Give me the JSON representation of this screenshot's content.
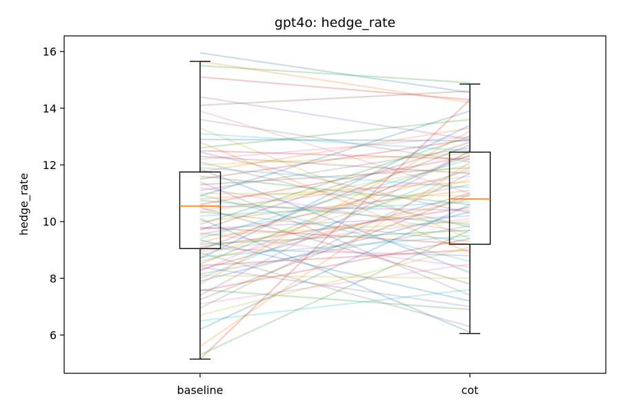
{
  "chart_data": {
    "type": "box",
    "title": "gpt4o: hedge_rate",
    "ylabel": "hedge_rate",
    "xlabel": "",
    "categories": [
      "baseline",
      "cot"
    ],
    "ylim": [
      4.65,
      16.55
    ],
    "yticks": [
      6,
      8,
      10,
      12,
      14,
      16
    ],
    "grid": false,
    "legend": "none",
    "box_stats": [
      {
        "category": "baseline",
        "whisker_low": 5.15,
        "q1": 9.05,
        "median": 10.55,
        "q3": 11.75,
        "whisker_high": 15.65
      },
      {
        "category": "cot",
        "whisker_low": 6.05,
        "q1": 9.2,
        "median": 10.8,
        "q3": 12.45,
        "whisker_high": 14.85
      }
    ],
    "paired_lines": [
      [
        15.95,
        14.55
      ],
      [
        15.65,
        14.2
      ],
      [
        15.5,
        14.9
      ],
      [
        15.1,
        14.3
      ],
      [
        14.4,
        12.9
      ],
      [
        14.1,
        14.6
      ],
      [
        13.9,
        11.0
      ],
      [
        13.6,
        12.1
      ],
      [
        13.3,
        9.4
      ],
      [
        13.1,
        12.5
      ],
      [
        12.9,
        12.85
      ],
      [
        12.8,
        8.9
      ],
      [
        12.6,
        13.6
      ],
      [
        12.5,
        12.2
      ],
      [
        12.45,
        10.3
      ],
      [
        12.3,
        11.7
      ],
      [
        12.2,
        13.0
      ],
      [
        12.1,
        9.8
      ],
      [
        12.0,
        12.4
      ],
      [
        11.9,
        11.2
      ],
      [
        11.85,
        8.2
      ],
      [
        11.75,
        13.3
      ],
      [
        11.6,
        10.6
      ],
      [
        11.5,
        12.9
      ],
      [
        11.4,
        7.4
      ],
      [
        11.3,
        11.9
      ],
      [
        11.2,
        9.6
      ],
      [
        11.1,
        12.6
      ],
      [
        11.0,
        10.9
      ],
      [
        10.95,
        8.6
      ],
      [
        10.9,
        13.9
      ],
      [
        10.8,
        11.4
      ],
      [
        10.75,
        9.9
      ],
      [
        10.6,
        12.3
      ],
      [
        10.55,
        10.4
      ],
      [
        10.5,
        7.8
      ],
      [
        10.4,
        11.6
      ],
      [
        10.35,
        9.3
      ],
      [
        10.3,
        12.0
      ],
      [
        10.2,
        10.7
      ],
      [
        10.1,
        6.1
      ],
      [
        10.0,
        11.1
      ],
      [
        9.9,
        13.0
      ],
      [
        9.8,
        9.2
      ],
      [
        9.75,
        10.2
      ],
      [
        9.7,
        12.8
      ],
      [
        9.6,
        8.4
      ],
      [
        9.55,
        11.3
      ],
      [
        9.5,
        10.0
      ],
      [
        9.4,
        12.2
      ],
      [
        9.35,
        7.2
      ],
      [
        9.25,
        11.8
      ],
      [
        9.2,
        9.7
      ],
      [
        9.1,
        10.5
      ],
      [
        9.05,
        8.8
      ],
      [
        9.0,
        12.7
      ],
      [
        8.95,
        10.1
      ],
      [
        8.9,
        6.3
      ],
      [
        8.8,
        11.5
      ],
      [
        8.75,
        9.5
      ],
      [
        8.7,
        13.4
      ],
      [
        8.6,
        10.8
      ],
      [
        8.5,
        12.35
      ],
      [
        8.45,
        9.0
      ],
      [
        8.4,
        7.0
      ],
      [
        8.3,
        11.0
      ],
      [
        8.25,
        12.45
      ],
      [
        8.15,
        9.85
      ],
      [
        8.1,
        8.0
      ],
      [
        8.0,
        11.9
      ],
      [
        7.9,
        10.35
      ],
      [
        7.8,
        13.2
      ],
      [
        7.6,
        6.9
      ],
      [
        7.55,
        9.4
      ],
      [
        7.4,
        12.5
      ],
      [
        7.25,
        10.95
      ],
      [
        7.1,
        8.5
      ],
      [
        6.95,
        11.7
      ],
      [
        6.7,
        9.1
      ],
      [
        6.5,
        7.6
      ],
      [
        6.2,
        10.6
      ],
      [
        5.6,
        12.1
      ],
      [
        5.3,
        9.7
      ],
      [
        5.15,
        14.3
      ]
    ],
    "colors": {
      "box": "#000000",
      "median": "#ff7f0e",
      "palette": [
        "#1f77b4",
        "#ff7f0e",
        "#2ca02c",
        "#d62728",
        "#9467bd",
        "#8c564b",
        "#e377c2",
        "#7f7f7f",
        "#bcbd22",
        "#17becf"
      ]
    }
  }
}
